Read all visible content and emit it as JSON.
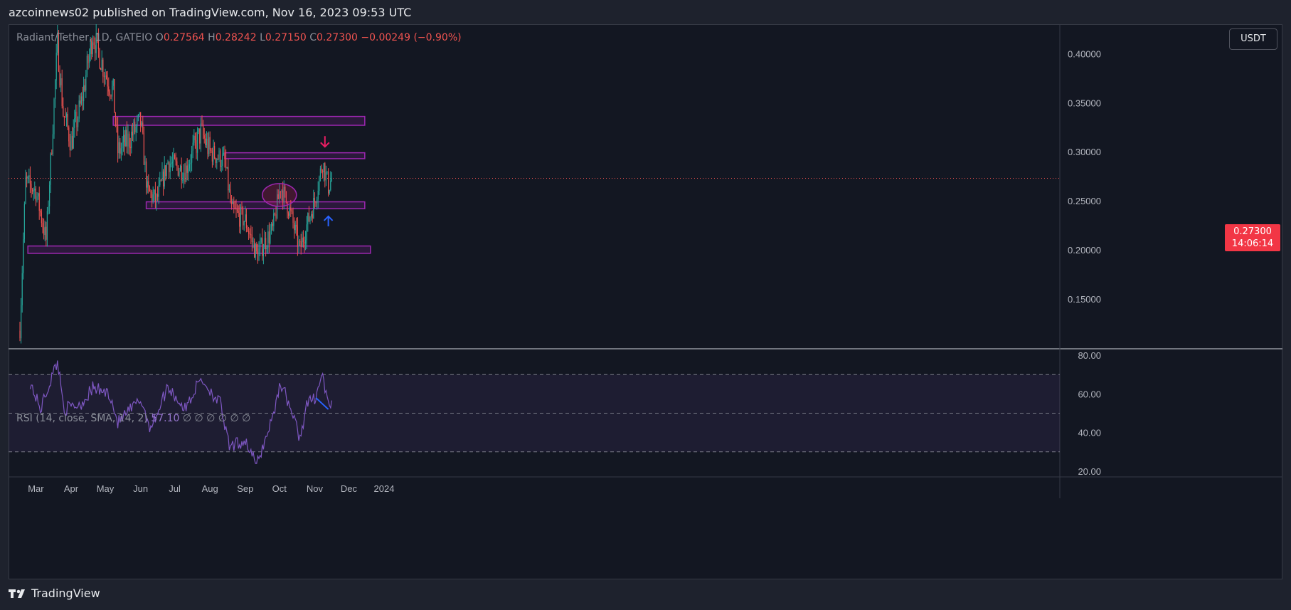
{
  "header": {
    "published": "azcoinnews02 published on TradingView.com, Nov 16, 2023 09:53 UTC"
  },
  "legend": {
    "symbol": "Radiant/Tether, 1D, GATEIO",
    "o_label": "O",
    "o_value": "0.27564",
    "h_label": "H",
    "h_value": "0.28242",
    "l_label": "L",
    "l_value": "0.27150",
    "c_label": "C",
    "c_value": "0.27300",
    "change": "−0.00249 (−0.90%)"
  },
  "rsi_legend": {
    "label": "RSI (14, close, SMA, 14, 2)",
    "value": "57.10",
    "placeholders": "∅ ∅ ∅ ∅ ∅ ∅"
  },
  "currency_button": "USDT",
  "price_tag": {
    "price": "0.27300",
    "countdown": "14:06:14"
  },
  "footer": {
    "brand": "TradingView"
  },
  "colors": {
    "up": "#26a69a",
    "down": "#ef5350",
    "zone": "#9c27b0",
    "rsi_line": "#7e57c2",
    "divergence": "#2962ff",
    "arrow_down": "#e91e63",
    "arrow_up": "#2962ff"
  },
  "chart_data": [
    {
      "type": "candlestick",
      "pair": "Radiant/Tether",
      "interval": "1D",
      "y_ticks": [
        "0.15000",
        "0.20000",
        "0.25000",
        "0.30000",
        "0.35000",
        "0.40000"
      ],
      "x_ticks": [
        "Mar",
        "Apr",
        "May",
        "Jun",
        "Jul",
        "Aug",
        "Sep",
        "Oct",
        "Nov",
        "Dec",
        "2024"
      ],
      "ylim": [
        0.1,
        0.43
      ],
      "last_price": 0.273,
      "approx_close_path": [
        [
          "2023-02-15",
          0.12
        ],
        [
          "2023-02-20",
          0.27
        ],
        [
          "2023-03-01",
          0.26
        ],
        [
          "2023-03-10",
          0.21
        ],
        [
          "2023-03-20",
          0.41
        ],
        [
          "2023-03-25",
          0.34
        ],
        [
          "2023-04-01",
          0.31
        ],
        [
          "2023-04-10",
          0.35
        ],
        [
          "2023-04-20",
          0.42
        ],
        [
          "2023-05-01",
          0.38
        ],
        [
          "2023-05-08",
          0.36
        ],
        [
          "2023-05-12",
          0.3
        ],
        [
          "2023-05-20",
          0.31
        ],
        [
          "2023-06-01",
          0.33
        ],
        [
          "2023-06-07",
          0.26
        ],
        [
          "2023-06-15",
          0.25
        ],
        [
          "2023-06-25",
          0.29
        ],
        [
          "2023-07-10",
          0.28
        ],
        [
          "2023-07-24",
          0.32
        ],
        [
          "2023-08-01",
          0.3
        ],
        [
          "2023-08-14",
          0.29
        ],
        [
          "2023-08-20",
          0.24
        ],
        [
          "2023-09-01",
          0.23
        ],
        [
          "2023-09-11",
          0.195
        ],
        [
          "2023-09-25",
          0.22
        ],
        [
          "2023-10-02",
          0.265
        ],
        [
          "2023-10-10",
          0.24
        ],
        [
          "2023-10-19",
          0.2
        ],
        [
          "2023-10-25",
          0.225
        ],
        [
          "2023-11-01",
          0.25
        ],
        [
          "2023-11-08",
          0.29
        ],
        [
          "2023-11-13",
          0.265
        ],
        [
          "2023-11-16",
          0.273
        ]
      ],
      "zones": [
        {
          "from": "2023-05-08",
          "to": "2023-12-15",
          "low": 0.327,
          "high": 0.336
        },
        {
          "from": "2023-08-14",
          "to": "2023-12-15",
          "low": 0.293,
          "high": 0.299
        },
        {
          "from": "2023-06-06",
          "to": "2023-12-15",
          "low": 0.242,
          "high": 0.249
        },
        {
          "from": "2023-02-22",
          "to": "2023-12-20",
          "low": 0.1965,
          "high": 0.204
        }
      ],
      "annotations": [
        {
          "kind": "arrow-down",
          "date": "2023-11-10",
          "price": 0.3
        },
        {
          "kind": "arrow-up",
          "date": "2023-11-13",
          "price": 0.24
        },
        {
          "kind": "ellipse",
          "date": "2023-10-01",
          "price": 0.256
        }
      ]
    },
    {
      "type": "line",
      "name": "RSI",
      "y_ticks": [
        "20.00",
        "40.00",
        "60.00",
        "80.00"
      ],
      "ylim": [
        17,
        83
      ],
      "bands": {
        "upper": 70,
        "middle": 50,
        "lower": 30
      },
      "approx_path": [
        [
          "2023-02-24",
          66
        ],
        [
          "2023-03-05",
          52
        ],
        [
          "2023-03-20",
          77
        ],
        [
          "2023-03-26",
          52
        ],
        [
          "2023-04-10",
          55
        ],
        [
          "2023-04-20",
          63
        ],
        [
          "2023-04-25",
          62
        ],
        [
          "2023-05-05",
          60
        ],
        [
          "2023-05-12",
          45
        ],
        [
          "2023-06-01",
          57
        ],
        [
          "2023-06-10",
          42
        ],
        [
          "2023-06-25",
          64
        ],
        [
          "2023-07-10",
          52
        ],
        [
          "2023-07-24",
          68
        ],
        [
          "2023-08-10",
          55
        ],
        [
          "2023-08-18",
          32
        ],
        [
          "2023-09-01",
          36
        ],
        [
          "2023-09-11",
          23
        ],
        [
          "2023-09-25",
          48
        ],
        [
          "2023-10-02",
          66
        ],
        [
          "2023-10-10",
          54
        ],
        [
          "2023-10-19",
          37
        ],
        [
          "2023-10-25",
          54
        ],
        [
          "2023-11-01",
          58
        ],
        [
          "2023-11-08",
          70
        ],
        [
          "2023-11-13",
          53
        ],
        [
          "2023-11-16",
          57
        ]
      ],
      "divergence_line": [
        [
          "2023-11-02",
          58
        ],
        [
          "2023-11-13",
          52
        ]
      ]
    }
  ]
}
